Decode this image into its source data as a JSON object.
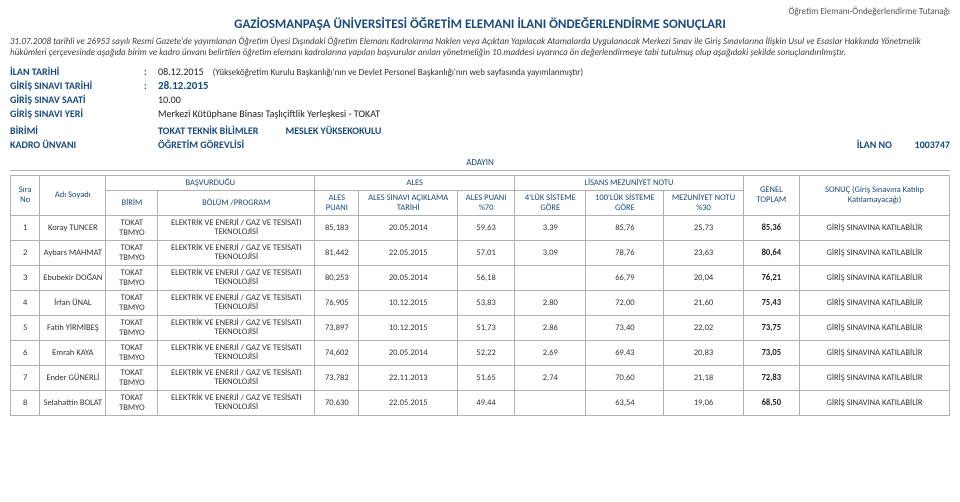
{
  "header": {
    "doc_type": "Öğretim Elemanı-Öndeğerlendirme Tutanağı",
    "title": "GAZİOSMANPAŞA ÜNİVERSİTESİ ÖĞRETİM ELEMANI İLANI ÖNDEĞERLENDİRME SONUÇLARI",
    "intro": "31.07.2008 tarihli ve 26953 sayılı Resmi Gazete'de yayımlanan Öğretim Üyesi Dışındaki Öğretim Elemanı Kadrolarına Naklen veya Açıktan Yapılacak Atamalarda Uygulanacak Merkezi Sınav ile Giriş Sınavlarına İlişkin Usul ve Esaslar Hakkında Yönetmelik hükümleri çerçevesinde aşağıda birim ve kadro ünvanı belirtilen öğretim elemanı kadrolarına yapılan başvurular anılan yönetmeliğin 10.maddesi uyarınca ön değerlendirmeye tabi tutulmuş olup aşağıdaki şekilde sonuçlandırılmıştır."
  },
  "meta": {
    "ilan_tarihi_lbl": "İLAN TARİHİ",
    "ilan_tarihi": "08.12.2015",
    "ilan_note": "(Yükseköğretim Kurulu Başkanlığı'nın ve Devlet Personel Başkanlığı'nın web sayfasında yayımlanmıştır)",
    "giris_sinavi_tarihi_lbl": "GİRİŞ SINAVI TARİHİ",
    "giris_sinavi_tarihi": "28.12.2015",
    "giris_sinav_saati_lbl": "GİRİŞ SINAV SAATİ",
    "giris_sinav_saati": "10.00",
    "giris_sinavi_yeri_lbl": "GİRİŞ SINAVI YERİ",
    "giris_sinavi_yeri": "Merkezi Kütüphane Binası Taşlıçiftlik Yerleşkesi - TOKAT",
    "birimi_lbl": "BİRİMİ",
    "birimi": "TOKAT TEKNİK BİLİMLER",
    "meslek": "MESLEK YÜKSEKOKULU",
    "kadro_unvani_lbl": "KADRO ÜNVANI",
    "kadro_unvani": "ÖĞRETİM GÖREVLİSİ",
    "ilan_no_lbl": "İLAN NO",
    "ilan_no": "1003747"
  },
  "table": {
    "adayin": "ADAYIN",
    "basvurdugu": "BAŞVURDUĞU",
    "ales_grp": "ALES",
    "lisans_grp": "LİSANS MEZUNİYET NOTU",
    "cols": {
      "sira": "Sıra No",
      "adi": "Adı Soyadı",
      "birim": "BİRİM",
      "bolum": "BÖLÜM /PROGRAM",
      "ales_puani": "ALES PUANI",
      "ales_tarih": "ALES SINAVI AÇIKLAMA TARİHİ",
      "ales_70": "ALES PUANI %70",
      "4luk": "4'LÜK SİSTEME GÖRE",
      "100luk": "100'LÜK SİSTEME GÖRE",
      "mez30": "MEZUNİYET NOTU %30",
      "genel": "GENEL TOPLAM",
      "sonuc": "SONUÇ (Giriş Sınavına Katılıp Katılamayacağı)"
    },
    "program": "ELEKTRİK VE ENERJİ / GAZ VE TESİSATI TEKNOLOJİSİ",
    "birim_val": "TOKAT TBMYO",
    "result_ok": "GİRİŞ SINAVINA KATILABİLİR",
    "rows": [
      {
        "n": "1",
        "ad": "Koray TUNCER",
        "ales": "85,183",
        "tarih": "20.05.2014",
        "p70": "59,63",
        "g4": "3.39",
        "g100": "85,76",
        "m30": "25,73",
        "gt": "85,36"
      },
      {
        "n": "2",
        "ad": "Aybars MAHMAT",
        "ales": "81,442",
        "tarih": "22.05.2015",
        "p70": "57,01",
        "g4": "3,09",
        "g100": "78,76",
        "m30": "23,63",
        "gt": "80,64"
      },
      {
        "n": "3",
        "ad": "Ebubekir DOĞAN",
        "ales": "80,253",
        "tarih": "20.05.2014",
        "p70": "56,18",
        "g4": "",
        "g100": "66,79",
        "m30": "20,04",
        "gt": "76,21"
      },
      {
        "n": "4",
        "ad": "İrfan ÜNAL",
        "ales": "76,905",
        "tarih": "10.12.2015",
        "p70": "53,83",
        "g4": "2.80",
        "g100": "72,00",
        "m30": "21,60",
        "gt": "75,43"
      },
      {
        "n": "5",
        "ad": "Fatih YİRMİBEŞ",
        "ales": "73,897",
        "tarih": "10.12.2015",
        "p70": "51,73",
        "g4": "2.86",
        "g100": "73,40",
        "m30": "22,02",
        "gt": "73,75"
      },
      {
        "n": "6",
        "ad": "Emrah KAYA",
        "ales": "74,602",
        "tarih": "20.05.2014",
        "p70": "52,22",
        "g4": "2.69",
        "g100": "69,43",
        "m30": "20,83",
        "gt": "73,05"
      },
      {
        "n": "7",
        "ad": "Ender GÜNERLİ",
        "ales": "73,782",
        "tarih": "22.11.2013",
        "p70": "51,65",
        "g4": "2.74",
        "g100": "70,60",
        "m30": "21,18",
        "gt": "72,83"
      },
      {
        "n": "8",
        "ad": "Selahattin BOLAT",
        "ales": "70,630",
        "tarih": "22.05.2015",
        "p70": "49,44",
        "g4": "",
        "g100": "63,54",
        "m30": "19,06",
        "gt": "68,50"
      }
    ]
  }
}
